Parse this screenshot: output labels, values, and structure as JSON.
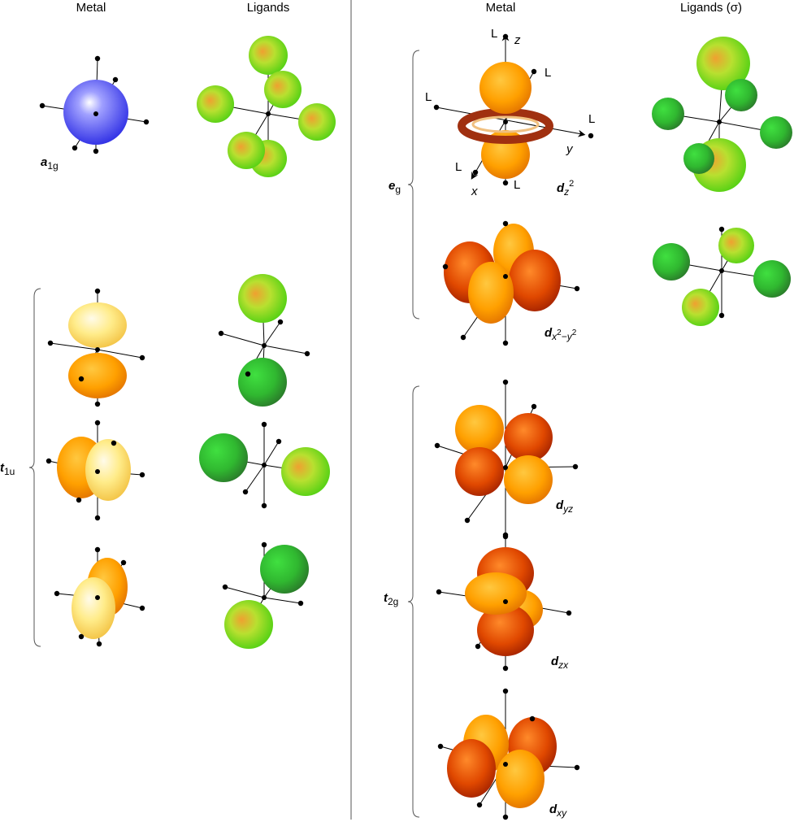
{
  "headers": [
    "Metal",
    "Ligands",
    "Metal",
    "Ligands (σ)"
  ],
  "symmetry_labels": [
    {
      "parts": [
        {
          "text": "a",
          "pos": "base",
          "style": "italic"
        },
        {
          "text": "1g",
          "pos": "sub",
          "style": "normal"
        }
      ]
    },
    {
      "parts": [
        {
          "text": "t",
          "pos": "base",
          "style": "italic"
        },
        {
          "text": "1u",
          "pos": "sub",
          "style": "normal"
        }
      ]
    },
    {
      "parts": [
        {
          "text": "e",
          "pos": "base",
          "style": "italic"
        },
        {
          "text": "g",
          "pos": "sub",
          "style": "normal"
        }
      ]
    },
    {
      "parts": [
        {
          "text": "t",
          "pos": "base",
          "style": "italic"
        },
        {
          "text": "2g",
          "pos": "sub",
          "style": "normal"
        }
      ]
    }
  ],
  "orbital_labels": [
    {
      "parts": [
        {
          "text": "d",
          "pos": "base",
          "style": "italic"
        },
        {
          "text": "z",
          "pos": "sub",
          "style": "italic"
        },
        {
          "text": "2",
          "pos": "sup",
          "style": "normal"
        }
      ]
    },
    {
      "parts": [
        {
          "text": "d",
          "pos": "base",
          "style": "italic"
        },
        {
          "text": "x",
          "pos": "sub",
          "style": "italic"
        },
        {
          "text": "2",
          "pos": "subsup",
          "style": "normal"
        },
        {
          "text": "−y",
          "pos": "sub",
          "style": "italic"
        },
        {
          "text": "2",
          "pos": "subsup",
          "style": "normal"
        }
      ]
    },
    {
      "parts": [
        {
          "text": "d",
          "pos": "base",
          "style": "italic"
        },
        {
          "text": "yz",
          "pos": "sub",
          "style": "italic"
        }
      ]
    },
    {
      "parts": [
        {
          "text": "d",
          "pos": "base",
          "style": "italic"
        },
        {
          "text": "zx",
          "pos": "sub",
          "style": "italic"
        }
      ]
    },
    {
      "parts": [
        {
          "text": "d",
          "pos": "base",
          "style": "italic"
        },
        {
          "text": "xy",
          "pos": "sub",
          "style": "italic"
        }
      ]
    }
  ],
  "axis_letters": [
    "z",
    "y",
    "x"
  ],
  "ligand_labels": [
    "L",
    "L",
    "L",
    "L",
    "L",
    "L"
  ]
}
